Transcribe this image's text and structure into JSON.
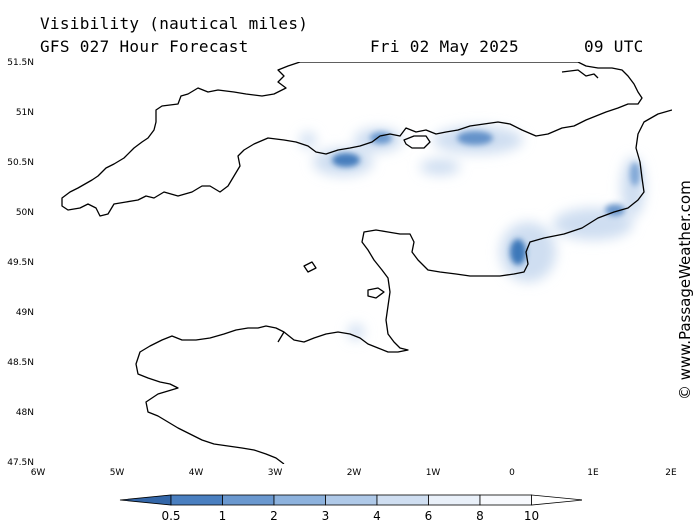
{
  "header": {
    "variable": "Visibility (nautical miles)",
    "model": "GFS 027 Hour Forecast",
    "date": "Fri 02 May 2025",
    "time": "09 UTC"
  },
  "credit": "© www.PassageWeather.com",
  "map": {
    "lat_labels": [
      "51.5N",
      "51N",
      "50.5N",
      "50N",
      "49.5N",
      "49N",
      "48.5N",
      "48N",
      "47.5N"
    ],
    "lon_labels": [
      "6W",
      "5W",
      "4W",
      "3W",
      "2W",
      "1W",
      "0",
      "1E",
      "2E"
    ],
    "lat_range": [
      47.5,
      51.5
    ],
    "lon_range": [
      -6,
      2
    ],
    "coastline_color": "#000000",
    "fog_color": "#2e6db4"
  },
  "legend": {
    "labels": [
      "0.5",
      "1",
      "2",
      "3",
      "4",
      "6",
      "8",
      "10"
    ],
    "colors": [
      "#3366a8",
      "#4a7fc0",
      "#6a98cf",
      "#8db2dd",
      "#afc9e8",
      "#cfdef1",
      "#e9f0f9",
      "#f7f9fd",
      "#ffffff"
    ]
  }
}
